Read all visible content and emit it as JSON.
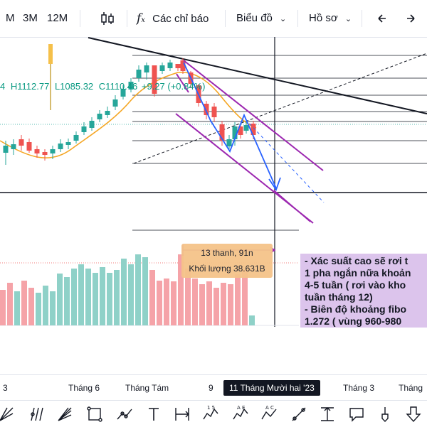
{
  "toolbar": {
    "interval_m": "M",
    "interval_3m": "3M",
    "interval_12m": "12M",
    "indicators_label": "Các chỉ báo",
    "chart_type_label": "Biểu đồ",
    "profile_label": "Hồ sơ"
  },
  "ohlc": {
    "open_suffix": "4",
    "high": "H1112.77",
    "low": "L1085.32",
    "close": "C1110.46",
    "change": "+9.27 (+0.84%)"
  },
  "measure": {
    "line1": "13 thanh, 91n",
    "line2": "Khối lượng 38.631B"
  },
  "note": {
    "line1": "- Xác suất cao sẽ rơi t",
    "line2": "1 pha ngắn nữa khoản",
    "line3": "4-5 tuần ( rơi vào kho",
    "line4": "tuần tháng 12)",
    "line5": "- Biên độ khoảng fibo",
    "line6": "1.272 ( vùng 960-980"
  },
  "time_axis": {
    "t1": "3",
    "t2": "Tháng 6",
    "t3": "Tháng Tám",
    "t4": "9",
    "t5": "11 Tháng Mười hai '23",
    "t6": "Tháng 3",
    "t7": "Tháng"
  },
  "colors": {
    "up": "#26a69a",
    "down": "#ef5350",
    "vol_up": "#8fd1c8",
    "vol_down": "#f5a3a8",
    "channel": "#9c27b0",
    "arrow": "#2962ff",
    "ma": "#f5a623"
  }
}
